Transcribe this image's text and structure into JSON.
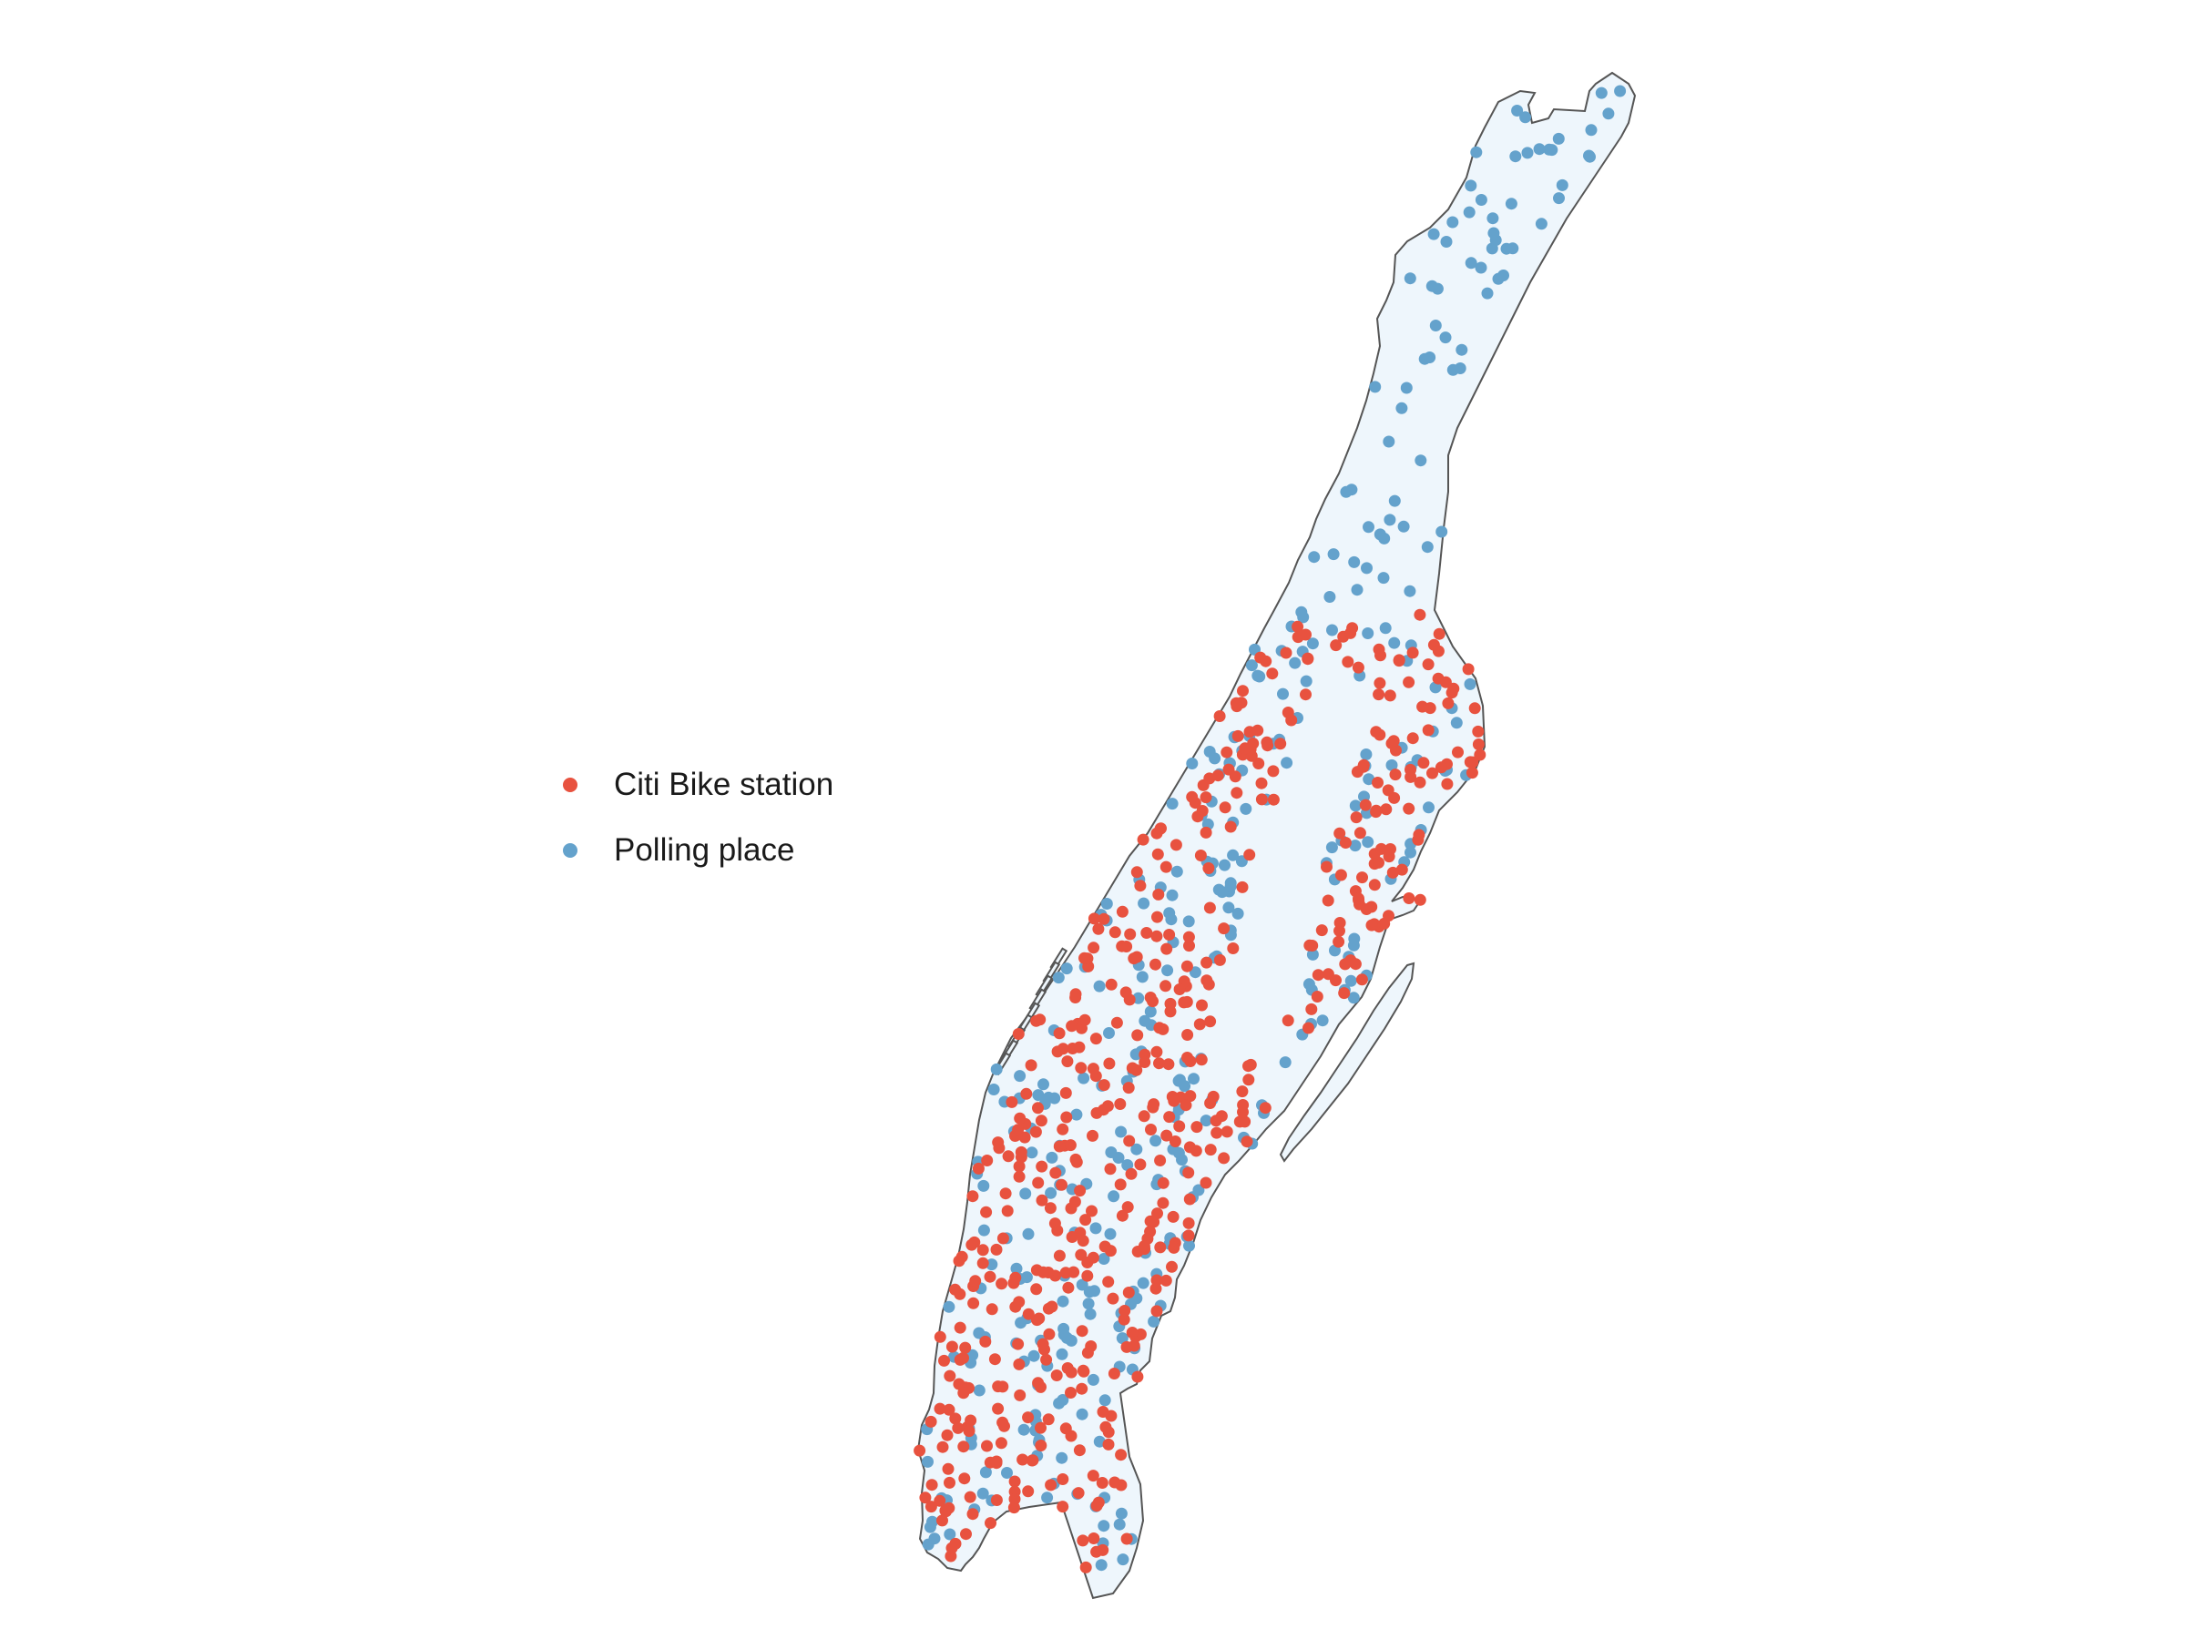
{
  "colors": {
    "land_fill": "#eef6fc",
    "coast_stroke": "#555555",
    "citi_bike": "#e8523f",
    "polling": "#64a2cc"
  },
  "legend": {
    "items": [
      {
        "label": "Citi Bike station",
        "color": "#e8523f",
        "icon": "red-dot"
      },
      {
        "label": "Polling place",
        "color": "#64a2cc",
        "icon": "blue-dot"
      }
    ]
  },
  "map": {
    "region": "Manhattan",
    "layers": [
      "Citi Bike station",
      "Polling place"
    ]
  }
}
